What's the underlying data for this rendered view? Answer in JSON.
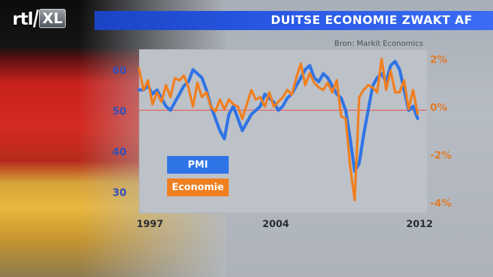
{
  "header": {
    "logo_rtl": "rtl",
    "logo_xl": "XL",
    "title": "DUITSE ECONOMIE ZWAKT AF"
  },
  "source": "Bron: Markit Economics",
  "colors": {
    "pmi": "#2f74e6",
    "economie": "#f07f1f",
    "left_axis": "#3550b8",
    "right_axis": "#e07b2a",
    "reference": "#e06a6a"
  },
  "chart_data": {
    "type": "line",
    "title": "DUITSE ECONOMIE ZWAKT AF",
    "x_ticks": [
      "1997",
      "2004",
      "2012"
    ],
    "x_range": [
      1997,
      2013
    ],
    "y_left": {
      "ticks": [
        "60",
        "50",
        "40",
        "30"
      ],
      "range": [
        25,
        65
      ]
    },
    "y_right": {
      "ticks": [
        "2%",
        "0%",
        "-2%",
        "-4%"
      ],
      "range": [
        -4.4,
        2.4
      ]
    },
    "reference_line": 50,
    "legend": [
      "PMI",
      "Economie"
    ],
    "series": [
      {
        "name": "PMI",
        "axis": "left",
        "x": [
          1997.0,
          1997.25,
          1997.5,
          1997.75,
          1998.0,
          1998.25,
          1998.5,
          1998.75,
          1999.0,
          1999.25,
          1999.5,
          1999.75,
          2000.0,
          2000.25,
          2000.5,
          2000.75,
          2001.0,
          2001.25,
          2001.5,
          2001.75,
          2002.0,
          2002.25,
          2002.5,
          2002.75,
          2003.0,
          2003.25,
          2003.5,
          2003.75,
          2004.0,
          2004.25,
          2004.5,
          2004.75,
          2005.0,
          2005.25,
          2005.5,
          2005.75,
          2006.0,
          2006.25,
          2006.5,
          2006.75,
          2007.0,
          2007.25,
          2007.5,
          2007.75,
          2008.0,
          2008.25,
          2008.5,
          2008.75,
          2009.0,
          2009.25,
          2009.5,
          2009.75,
          2010.0,
          2010.25,
          2010.5,
          2010.75,
          2011.0,
          2011.25,
          2011.5,
          2011.75,
          2012.0,
          2012.25,
          2012.5
        ],
        "values": [
          55,
          55,
          56,
          54,
          55,
          53,
          51,
          50,
          52,
          54,
          56,
          57,
          60,
          59,
          58,
          55,
          51,
          48,
          45,
          43,
          49,
          51,
          48,
          45,
          47,
          49,
          50,
          51,
          54,
          53,
          52,
          50,
          51,
          53,
          54,
          56,
          58,
          60,
          61,
          58,
          57,
          59,
          58,
          56,
          54,
          53,
          50,
          43,
          35,
          37,
          44,
          50,
          56,
          58,
          59,
          57,
          61,
          62,
          60,
          55,
          50,
          51,
          48
        ]
      },
      {
        "name": "Economie",
        "axis": "right",
        "x": [
          1997.0,
          1997.25,
          1997.5,
          1997.75,
          1998.0,
          1998.25,
          1998.5,
          1998.75,
          1999.0,
          1999.25,
          1999.5,
          1999.75,
          2000.0,
          2000.25,
          2000.5,
          2000.75,
          2001.0,
          2001.25,
          2001.5,
          2001.75,
          2002.0,
          2002.25,
          2002.5,
          2002.75,
          2003.0,
          2003.25,
          2003.5,
          2003.75,
          2004.0,
          2004.25,
          2004.5,
          2004.75,
          2005.0,
          2005.25,
          2005.5,
          2005.75,
          2006.0,
          2006.25,
          2006.5,
          2006.75,
          2007.0,
          2007.25,
          2007.5,
          2007.75,
          2008.0,
          2008.25,
          2008.5,
          2008.75,
          2009.0,
          2009.25,
          2009.5,
          2009.75,
          2010.0,
          2010.25,
          2010.5,
          2010.75,
          2011.0,
          2011.25,
          2011.5,
          2011.75,
          2012.0,
          2012.25,
          2012.5
        ],
        "values": [
          1.6,
          0.7,
          1.1,
          0.1,
          0.6,
          0.2,
          0.9,
          0.4,
          1.2,
          1.1,
          1.3,
          0.8,
          0.0,
          1.0,
          0.4,
          0.6,
          0.0,
          -0.2,
          0.3,
          -0.1,
          0.3,
          0.1,
          0.0,
          -0.5,
          0.1,
          0.7,
          0.3,
          0.4,
          0.0,
          0.6,
          0.0,
          0.2,
          0.4,
          0.7,
          0.5,
          1.2,
          1.8,
          0.9,
          1.4,
          1.0,
          0.8,
          0.7,
          1.0,
          0.6,
          1.1,
          -0.4,
          -0.5,
          -2.5,
          -3.9,
          0.4,
          0.7,
          0.9,
          0.8,
          0.6,
          2.0,
          0.7,
          1.5,
          0.6,
          0.6,
          1.1,
          -0.1,
          0.7,
          -0.3
        ]
      }
    ]
  }
}
